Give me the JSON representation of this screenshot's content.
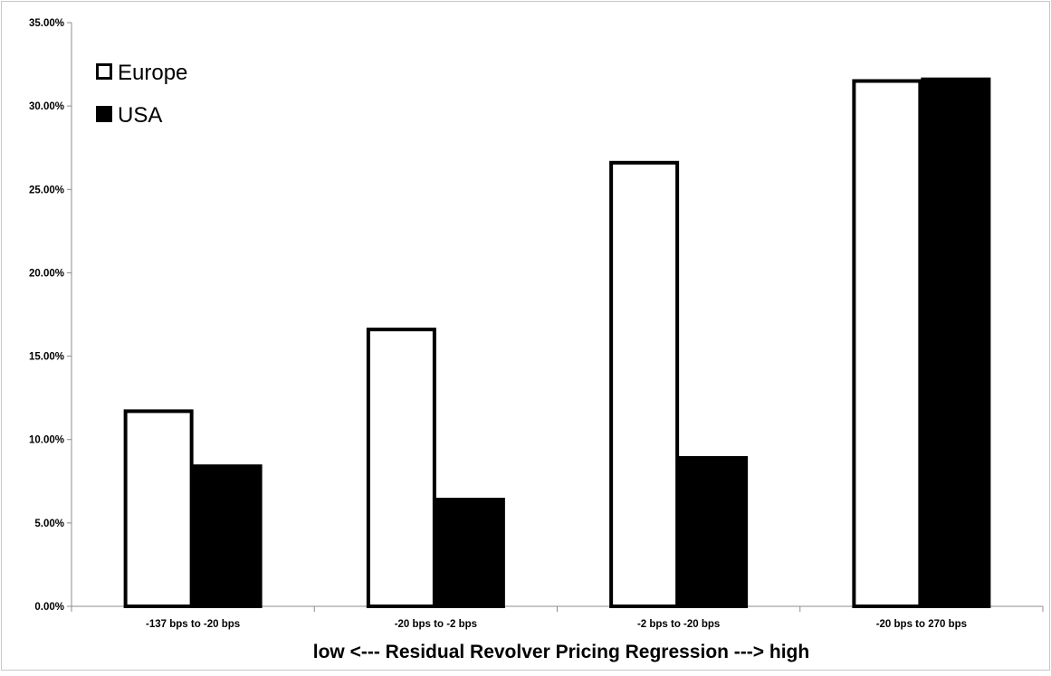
{
  "chart_data": {
    "type": "bar",
    "title": "",
    "xlabel": "low <--- Residual Revolver Pricing Regression ---> high",
    "ylabel": "",
    "categories": [
      "-137 bps to -20 bps",
      "-20 bps to -2 bps",
      "-2 bps to -20 bps",
      "-20 bps to 270 bps"
    ],
    "series": [
      {
        "name": "Europe",
        "values": [
          11.7,
          16.6,
          26.6,
          31.5
        ],
        "fill": "#ffffff",
        "stroke": "#000000"
      },
      {
        "name": "USA",
        "values": [
          8.4,
          6.4,
          8.9,
          31.6
        ],
        "fill": "#000000",
        "stroke": "#000000"
      }
    ],
    "ylim": [
      0,
      35
    ],
    "yticks": [
      "0.00%",
      "5.00%",
      "10.00%",
      "15.00%",
      "20.00%",
      "25.00%",
      "30.00%",
      "35.00%"
    ],
    "grid": false,
    "legend": "top-left"
  }
}
